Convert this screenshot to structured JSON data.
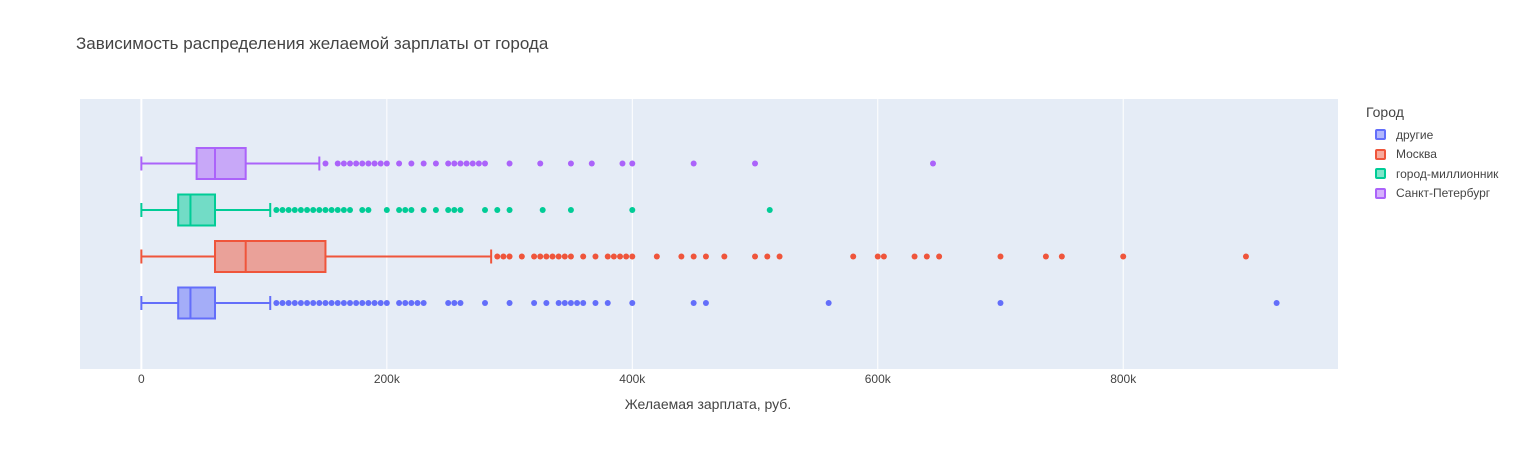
{
  "chart_data": {
    "type": "box",
    "orientation": "horizontal",
    "title": "Зависимость распределения желаемой зарплаты от города",
    "xlabel": "Желаемая зарплата, руб.",
    "ylabel": "",
    "xlim": [
      -50000,
      975000
    ],
    "x_ticks": [
      0,
      200000,
      400000,
      600000,
      800000
    ],
    "x_tick_labels": [
      "0",
      "200k",
      "400k",
      "600k",
      "800k"
    ],
    "grid": true,
    "legend": {
      "title": "Город",
      "placement": "right"
    },
    "plot_background": "#e5ecf6",
    "series": [
      {
        "name": "другие",
        "color": "#636efa",
        "fill": "rgba(99,110,250,0.5)",
        "min": 0,
        "q1": 30000,
        "median": 40000,
        "q3": 60000,
        "upper_fence": 105000,
        "outliers": [
          110000,
          115000,
          120000,
          125000,
          130000,
          135000,
          140000,
          145000,
          150000,
          155000,
          160000,
          165000,
          170000,
          175000,
          180000,
          185000,
          190000,
          195000,
          200000,
          210000,
          215000,
          220000,
          225000,
          230000,
          250000,
          255000,
          260000,
          280000,
          300000,
          320000,
          330000,
          340000,
          345000,
          350000,
          355000,
          360000,
          370000,
          380000,
          400000,
          450000,
          460000,
          560000,
          700000,
          925000
        ]
      },
      {
        "name": "Москва",
        "color": "#ef553b",
        "fill": "rgba(239,85,59,0.5)",
        "min": 0,
        "q1": 60000,
        "median": 85000,
        "q3": 150000,
        "upper_fence": 285000,
        "outliers": [
          290000,
          295000,
          300000,
          310000,
          320000,
          325000,
          330000,
          335000,
          340000,
          345000,
          350000,
          360000,
          370000,
          380000,
          385000,
          390000,
          395000,
          400000,
          420000,
          440000,
          450000,
          460000,
          475000,
          500000,
          510000,
          520000,
          580000,
          600000,
          605000,
          630000,
          640000,
          650000,
          700000,
          737000,
          750000,
          800000,
          900000
        ]
      },
      {
        "name": "город-миллионник",
        "color": "#00cc96",
        "fill": "rgba(0,204,150,0.5)",
        "min": 0,
        "q1": 30000,
        "median": 40000,
        "q3": 60000,
        "upper_fence": 105000,
        "outliers": [
          110000,
          115000,
          120000,
          125000,
          130000,
          135000,
          140000,
          145000,
          150000,
          155000,
          160000,
          165000,
          170000,
          180000,
          185000,
          200000,
          210000,
          215000,
          220000,
          230000,
          240000,
          250000,
          255000,
          260000,
          280000,
          290000,
          300000,
          327000,
          350000,
          400000,
          512000
        ]
      },
      {
        "name": "Санкт-Петербург",
        "color": "#ab63fa",
        "fill": "rgba(171,99,250,0.5)",
        "min": 0,
        "q1": 45000,
        "median": 60000,
        "q3": 85000,
        "upper_fence": 145000,
        "outliers": [
          150000,
          160000,
          165000,
          170000,
          175000,
          180000,
          185000,
          190000,
          195000,
          200000,
          210000,
          220000,
          230000,
          240000,
          250000,
          255000,
          260000,
          265000,
          270000,
          275000,
          280000,
          300000,
          325000,
          350000,
          367000,
          392000,
          400000,
          450000,
          500000,
          645000
        ]
      }
    ]
  }
}
